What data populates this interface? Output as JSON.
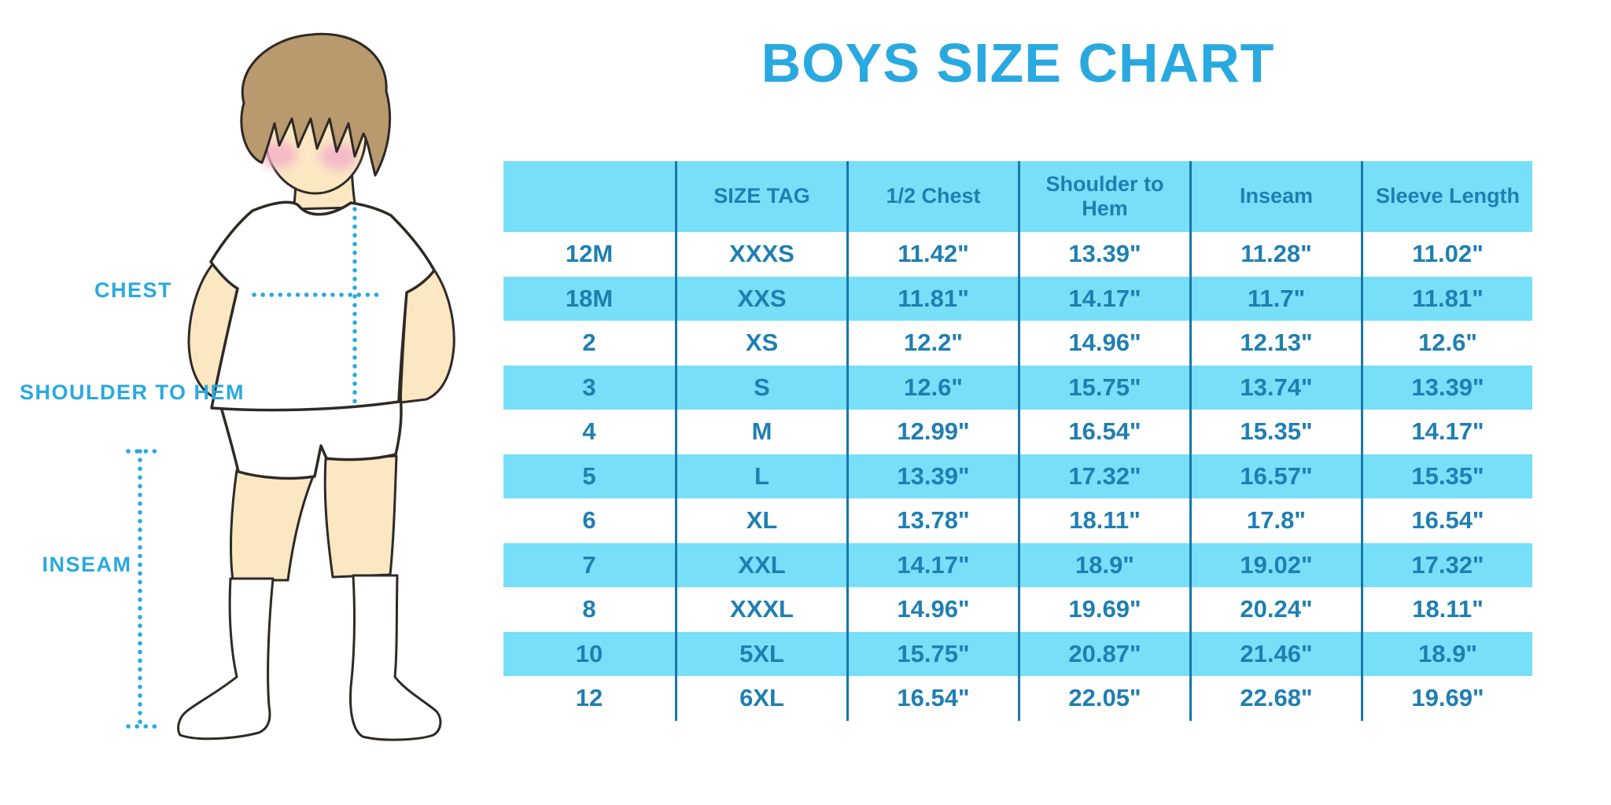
{
  "title": "BOYS SIZE CHART",
  "colors": {
    "accent_blue": "#29a9e0",
    "band_cyan": "#77dff8",
    "table_text_blue": "#1f7fb2",
    "divider_blue": "#1877a9",
    "hair_brown": "#b9996e",
    "skin": "#fce7c3",
    "cheek_pink": "#f3b3c8"
  },
  "illustration": {
    "labels": {
      "chest": "CHEST",
      "shoulder_to_hem": "SHOULDER TO HEM",
      "inseam": "INSEAM"
    }
  },
  "chart_data": {
    "type": "table",
    "title": "BOYS SIZE CHART",
    "columns": [
      "",
      "SIZE TAG",
      "1/2 Chest",
      "Shoulder to Hem",
      "Inseam",
      "Sleeve Length"
    ],
    "rows": [
      [
        "12M",
        "XXXS",
        "11.42\"",
        "13.39\"",
        "11.28\"",
        "11.02\""
      ],
      [
        "18M",
        "XXS",
        "11.81\"",
        "14.17\"",
        "11.7\"",
        "11.81\""
      ],
      [
        "2",
        "XS",
        "12.2\"",
        "14.96\"",
        "12.13\"",
        "12.6\""
      ],
      [
        "3",
        "S",
        "12.6\"",
        "15.75\"",
        "13.74\"",
        "13.39\""
      ],
      [
        "4",
        "M",
        "12.99\"",
        "16.54\"",
        "15.35\"",
        "14.17\""
      ],
      [
        "5",
        "L",
        "13.39\"",
        "17.32\"",
        "16.57\"",
        "15.35\""
      ],
      [
        "6",
        "XL",
        "13.78\"",
        "18.11\"",
        "17.8\"",
        "16.54\""
      ],
      [
        "7",
        "XXL",
        "14.17\"",
        "18.9\"",
        "19.02\"",
        "17.32\""
      ],
      [
        "8",
        "XXXL",
        "14.96\"",
        "19.69\"",
        "20.24\"",
        "18.11\""
      ],
      [
        "10",
        "5XL",
        "15.75\"",
        "20.87\"",
        "21.46\"",
        "18.9\""
      ],
      [
        "12",
        "6XL",
        "16.54\"",
        "22.05\"",
        "22.68\"",
        "19.69\""
      ]
    ]
  }
}
